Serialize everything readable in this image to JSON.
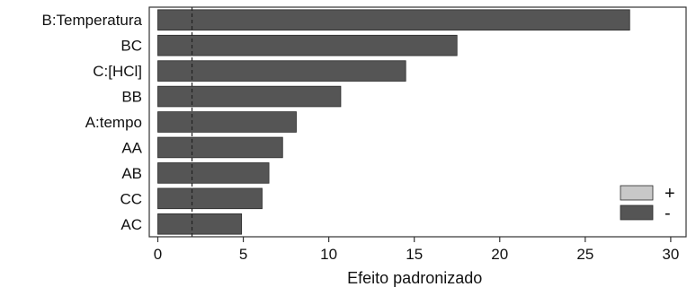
{
  "chart_data": {
    "type": "bar",
    "orientation": "horizontal",
    "title": "",
    "xlabel": "Efeito padronizado",
    "ylabel": "",
    "categories": [
      "B:Temperatura",
      "BC",
      "C:[HCl]",
      "BB",
      "A:tempo",
      "AA",
      "AB",
      "CC",
      "AC"
    ],
    "values": [
      27.6,
      17.5,
      14.5,
      10.7,
      8.1,
      7.3,
      6.5,
      6.1,
      4.9
    ],
    "signs": [
      "-",
      "-",
      "-",
      "-",
      "-",
      "-",
      "-",
      "-",
      "-"
    ],
    "xlim": [
      -0.5,
      30.9
    ],
    "xticks": [
      0,
      5,
      10,
      15,
      20,
      25,
      30
    ],
    "reference_line": 2.0,
    "grid": false,
    "legend": {
      "placement": "bottom-right",
      "entries": [
        {
          "label": "+",
          "color": "#c8c8c8"
        },
        {
          "label": "-",
          "color": "#555555"
        }
      ]
    },
    "colors": {
      "negative_bar": "#555555",
      "positive_bar": "#c8c8c8"
    }
  }
}
